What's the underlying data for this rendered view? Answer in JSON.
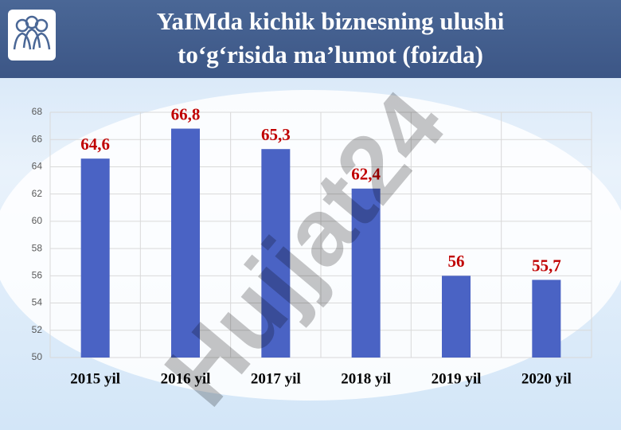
{
  "chart_data": {
    "type": "bar",
    "title": "YaIMda kichik biznesning ulushi to‘g‘risida ma’lumot (foizda)",
    "categories": [
      "2015 yil",
      "2016 yil",
      "2017 yil",
      "2018 yil",
      "2019 yil",
      "2020 yil"
    ],
    "values": [
      64.6,
      66.8,
      65.3,
      62.4,
      56,
      55.7
    ],
    "value_labels": [
      "64,6",
      "66,8",
      "65,3",
      "62,4",
      "56",
      "55,7"
    ],
    "color": "#4a63c4",
    "ylim": [
      50,
      68
    ],
    "yticks": [
      50,
      52,
      54,
      56,
      58,
      60,
      62,
      64,
      66,
      68
    ],
    "grid": true,
    "watermark": "Hujjat24"
  }
}
